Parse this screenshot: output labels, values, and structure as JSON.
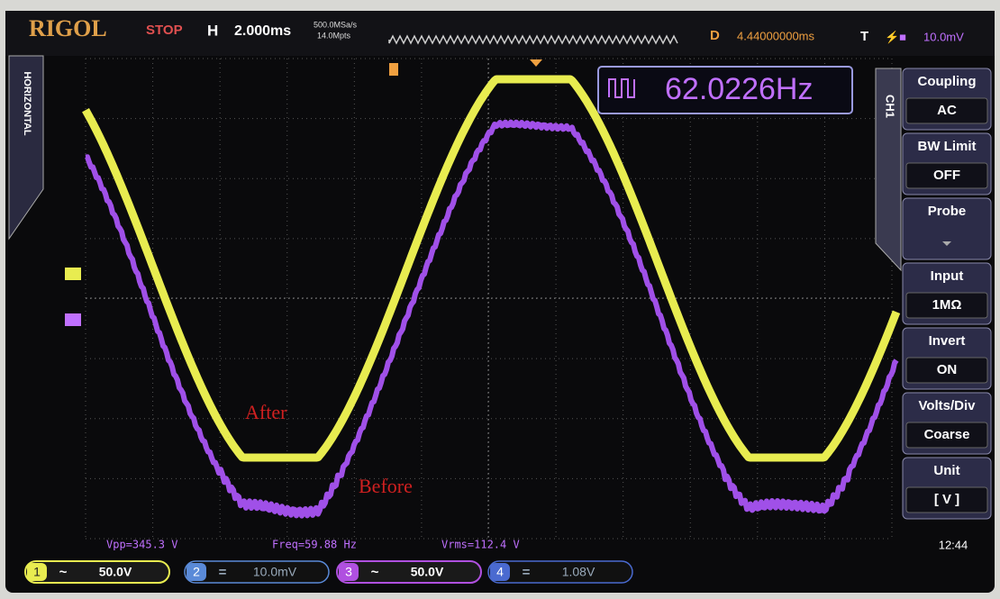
{
  "header": {
    "brand": "RIGOL",
    "status": "STOP",
    "timebase_label": "H",
    "timebase": "2.000ms",
    "sample_rate": "500.0MSa/s",
    "memory_depth": "14.0Mpts",
    "delay_label": "D",
    "delay": "4.44000000ms",
    "trigger_label": "T",
    "trigger_level": "10.0mV"
  },
  "side_tab": "HORIZONTAL",
  "frequency_counter": "62.0226Hz",
  "traces": {
    "after": "After",
    "before": "Before"
  },
  "menu": {
    "channel": "CH1",
    "items": [
      {
        "label": "Coupling",
        "value": "AC"
      },
      {
        "label": "BW Limit",
        "value": "OFF"
      },
      {
        "label": "Probe"
      },
      {
        "label": "Input",
        "value": "1MΩ"
      },
      {
        "label": "Invert",
        "value": "ON"
      },
      {
        "label": "Volts/Div",
        "value": "Coarse"
      },
      {
        "label": "Unit",
        "value": "[ V ]"
      }
    ]
  },
  "measurements": [
    "Vpp=345.3 V",
    "Freq=59.88 Hz",
    "Vrms=112.4 V"
  ],
  "channels": [
    {
      "number": "1",
      "coupling": "~",
      "scale": "50.0V"
    },
    {
      "number": "2",
      "coupling": "=",
      "scale": "10.0mV"
    },
    {
      "number": "3",
      "coupling": "~",
      "scale": "50.0V"
    },
    {
      "number": "4",
      "coupling": "=",
      "scale": "1.08V"
    }
  ],
  "clock": "12:44"
}
